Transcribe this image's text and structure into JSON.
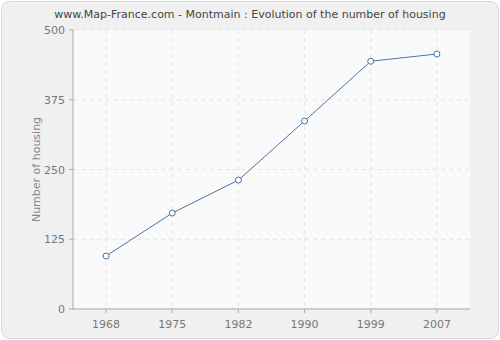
{
  "chart_data": {
    "type": "line",
    "title": "www.Map-France.com - Montmain : Evolution of the number of housing",
    "y_label": "Number of housing",
    "categories": [
      "1968",
      "1975",
      "1982",
      "1990",
      "1999",
      "2007"
    ],
    "values": [
      95,
      172,
      231,
      337,
      444,
      457
    ],
    "color": "#4a76a8",
    "marker": "circle",
    "ylim": [
      0,
      500
    ],
    "yticks": [
      0,
      125,
      250,
      375,
      500
    ],
    "grid": true
  }
}
